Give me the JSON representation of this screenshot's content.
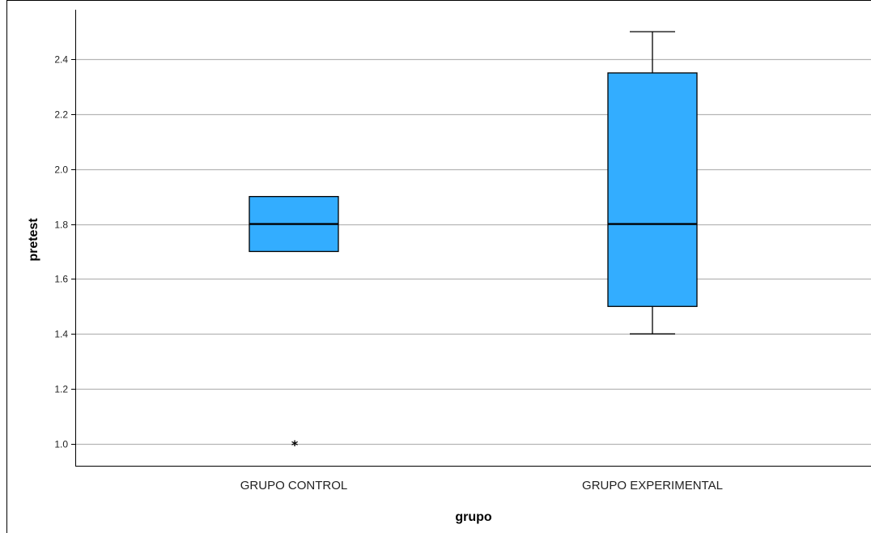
{
  "chart_data": {
    "type": "boxplot",
    "title": "",
    "xlabel": "grupo",
    "ylabel": "pretest",
    "ylim": [
      0.92,
      2.58
    ],
    "yticks": [
      1.0,
      1.2,
      1.4,
      1.6,
      1.8,
      2.0,
      2.2,
      2.4
    ],
    "ytick_labels": [
      "1.0",
      "1.2",
      "1.4",
      "1.6",
      "1.8",
      "2.0",
      "2.2",
      "2.4"
    ],
    "grid": true,
    "categories": [
      "GRUPO CONTROL",
      "GRUPO EXPERIMENTAL"
    ],
    "boxes": [
      {
        "category": "GRUPO CONTROL",
        "whisker_low": 1.7,
        "q1": 1.7,
        "median": 1.8,
        "q3": 1.9,
        "whisker_high": 1.9,
        "outliers": [
          {
            "value": 1.0,
            "marker": "*"
          }
        ]
      },
      {
        "category": "GRUPO EXPERIMENTAL",
        "whisker_low": 1.4,
        "q1": 1.5,
        "median": 1.8,
        "q3": 2.35,
        "whisker_high": 2.5,
        "outliers": []
      }
    ],
    "colors": {
      "box_fill": "#33adff",
      "box_stroke": "#000000",
      "gridline": "#b5b5b5",
      "axis": "#000000",
      "frame": "#000000"
    }
  }
}
